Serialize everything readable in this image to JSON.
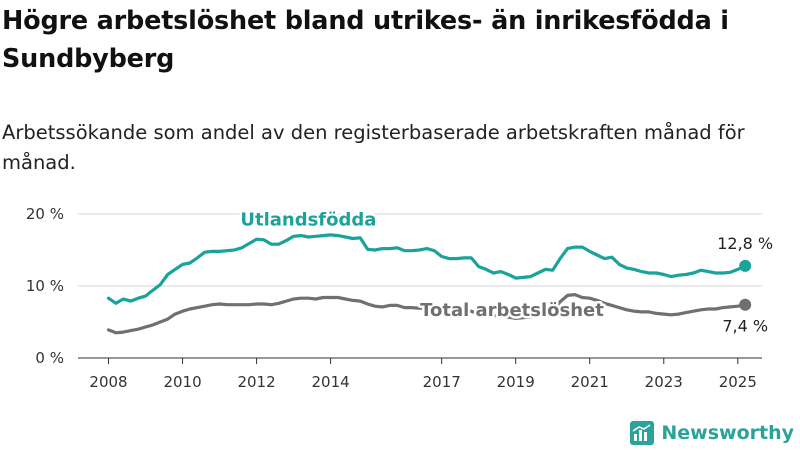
{
  "title": "Högre arbetslöshet bland utrikes- än inrikesfödda i Sundbyberg",
  "subtitle": "Arbetssökande som andel av den registerbaserade arbetskraften månad för månad.",
  "brand": {
    "name": "Newsworthy",
    "icon": "newsworthy-logo-icon",
    "color": "#2aa39a"
  },
  "chart_data": {
    "type": "line",
    "title": "Högre arbetslöshet bland utrikes- än inrikesfödda i Sundbyberg",
    "subtitle": "Arbetssökande som andel av den registerbaserade arbetskraften månad för månad.",
    "xlabel": "",
    "ylabel": "",
    "xlim": [
      2007.5,
      2025.6
    ],
    "ylim": [
      0,
      20
    ],
    "y_ticks": [
      0,
      10,
      20
    ],
    "y_tick_labels": [
      "0 %",
      "10 %",
      "20 %"
    ],
    "x_ticks": [
      2008,
      2010,
      2012,
      2014,
      2017,
      2019,
      2021,
      2023,
      2025
    ],
    "x_tick_labels": [
      "2008",
      "2010",
      "2012",
      "2014",
      "2017",
      "2019",
      "2021",
      "2023",
      "2025"
    ],
    "grid": true,
    "legend": "none (series labelled directly)",
    "series": [
      {
        "name": "Utlandsfödda",
        "color": "#1aa39a",
        "end_label": "12,8 %",
        "x": [
          2008.0,
          2008.2,
          2008.4,
          2008.6,
          2008.8,
          2009.0,
          2009.2,
          2009.4,
          2009.6,
          2009.8,
          2010.0,
          2010.2,
          2010.4,
          2010.6,
          2010.8,
          2011.0,
          2011.2,
          2011.4,
          2011.6,
          2011.8,
          2012.0,
          2012.2,
          2012.4,
          2012.6,
          2012.8,
          2013.0,
          2013.2,
          2013.4,
          2013.6,
          2013.8,
          2014.0,
          2014.2,
          2014.4,
          2014.6,
          2014.8,
          2015.0,
          2015.2,
          2015.4,
          2015.6,
          2015.8,
          2016.0,
          2016.2,
          2016.4,
          2016.6,
          2016.8,
          2017.0,
          2017.2,
          2017.4,
          2017.6,
          2017.8,
          2018.0,
          2018.2,
          2018.4,
          2018.6,
          2018.8,
          2019.0,
          2019.2,
          2019.4,
          2019.6,
          2019.8,
          2020.0,
          2020.2,
          2020.4,
          2020.6,
          2020.8,
          2021.0,
          2021.2,
          2021.4,
          2021.6,
          2021.8,
          2022.0,
          2022.2,
          2022.4,
          2022.6,
          2022.8,
          2023.0,
          2023.2,
          2023.4,
          2023.6,
          2023.8,
          2024.0,
          2024.2,
          2024.4,
          2024.6,
          2024.8,
          2025.0,
          2025.2
        ],
        "y": [
          8.3,
          7.6,
          8.2,
          7.9,
          8.3,
          8.6,
          9.4,
          10.2,
          11.6,
          12.3,
          13.0,
          13.2,
          13.9,
          14.7,
          14.8,
          14.8,
          14.9,
          15.0,
          15.3,
          15.9,
          16.5,
          16.4,
          15.8,
          15.8,
          16.3,
          16.9,
          17.0,
          16.8,
          16.9,
          17.0,
          17.1,
          17.0,
          16.8,
          16.6,
          16.7,
          15.1,
          15.0,
          15.2,
          15.2,
          15.3,
          14.9,
          14.9,
          15.0,
          15.2,
          14.9,
          14.1,
          13.8,
          13.8,
          13.9,
          13.9,
          12.7,
          12.3,
          11.8,
          12.0,
          11.6,
          11.1,
          11.2,
          11.3,
          11.8,
          12.3,
          12.2,
          13.8,
          15.2,
          15.4,
          15.4,
          14.8,
          14.3,
          13.8,
          14.0,
          13.0,
          12.5,
          12.3,
          12.0,
          11.8,
          11.8,
          11.6,
          11.3,
          11.5,
          11.6,
          11.8,
          12.2,
          12.0,
          11.8,
          11.8,
          11.9,
          12.3,
          12.8
        ]
      },
      {
        "name": "Total arbetslöshet",
        "color": "#707070",
        "end_label": "7,4 %",
        "x": [
          2008.0,
          2008.2,
          2008.4,
          2008.6,
          2008.8,
          2009.0,
          2009.2,
          2009.4,
          2009.6,
          2009.8,
          2010.0,
          2010.2,
          2010.4,
          2010.6,
          2010.8,
          2011.0,
          2011.2,
          2011.4,
          2011.6,
          2011.8,
          2012.0,
          2012.2,
          2012.4,
          2012.6,
          2012.8,
          2013.0,
          2013.2,
          2013.4,
          2013.6,
          2013.8,
          2014.0,
          2014.2,
          2014.4,
          2014.6,
          2014.8,
          2015.0,
          2015.2,
          2015.4,
          2015.6,
          2015.8,
          2016.0,
          2016.2,
          2016.4,
          2016.6,
          2016.8,
          2017.0,
          2017.2,
          2017.4,
          2017.6,
          2017.8,
          2018.0,
          2018.2,
          2018.4,
          2018.6,
          2018.8,
          2019.0,
          2019.2,
          2019.4,
          2019.6,
          2019.8,
          2020.0,
          2020.2,
          2020.4,
          2020.6,
          2020.8,
          2021.0,
          2021.2,
          2021.4,
          2021.6,
          2021.8,
          2022.0,
          2022.2,
          2022.4,
          2022.6,
          2022.8,
          2023.0,
          2023.2,
          2023.4,
          2023.6,
          2023.8,
          2024.0,
          2024.2,
          2024.4,
          2024.6,
          2024.8,
          2025.0,
          2025.2
        ],
        "y": [
          3.9,
          3.5,
          3.6,
          3.8,
          4.0,
          4.3,
          4.6,
          5.0,
          5.4,
          6.1,
          6.5,
          6.8,
          7.0,
          7.2,
          7.4,
          7.5,
          7.4,
          7.4,
          7.4,
          7.4,
          7.5,
          7.5,
          7.4,
          7.6,
          7.9,
          8.2,
          8.3,
          8.3,
          8.2,
          8.4,
          8.4,
          8.4,
          8.2,
          8.0,
          7.9,
          7.5,
          7.2,
          7.1,
          7.3,
          7.3,
          7.0,
          7.0,
          6.9,
          7.0,
          7.0,
          6.7,
          6.6,
          6.5,
          6.5,
          6.5,
          6.1,
          6.0,
          5.9,
          5.8,
          5.7,
          5.5,
          5.6,
          5.7,
          5.9,
          6.2,
          6.6,
          7.8,
          8.7,
          8.8,
          8.4,
          8.3,
          8.0,
          7.6,
          7.3,
          7.0,
          6.7,
          6.5,
          6.4,
          6.4,
          6.2,
          6.1,
          6.0,
          6.1,
          6.3,
          6.5,
          6.7,
          6.8,
          6.8,
          7.0,
          7.1,
          7.2,
          7.4
        ]
      }
    ],
    "annotations": [
      {
        "text": "Utlandsfödda",
        "series": "Utlandsfödda"
      },
      {
        "text": "Total arbetslöshet",
        "series": "Total arbetslöshet"
      },
      {
        "text": "12,8 %",
        "series": "Utlandsfödda"
      },
      {
        "text": "7,4 %",
        "series": "Total arbetslöshet"
      }
    ]
  }
}
